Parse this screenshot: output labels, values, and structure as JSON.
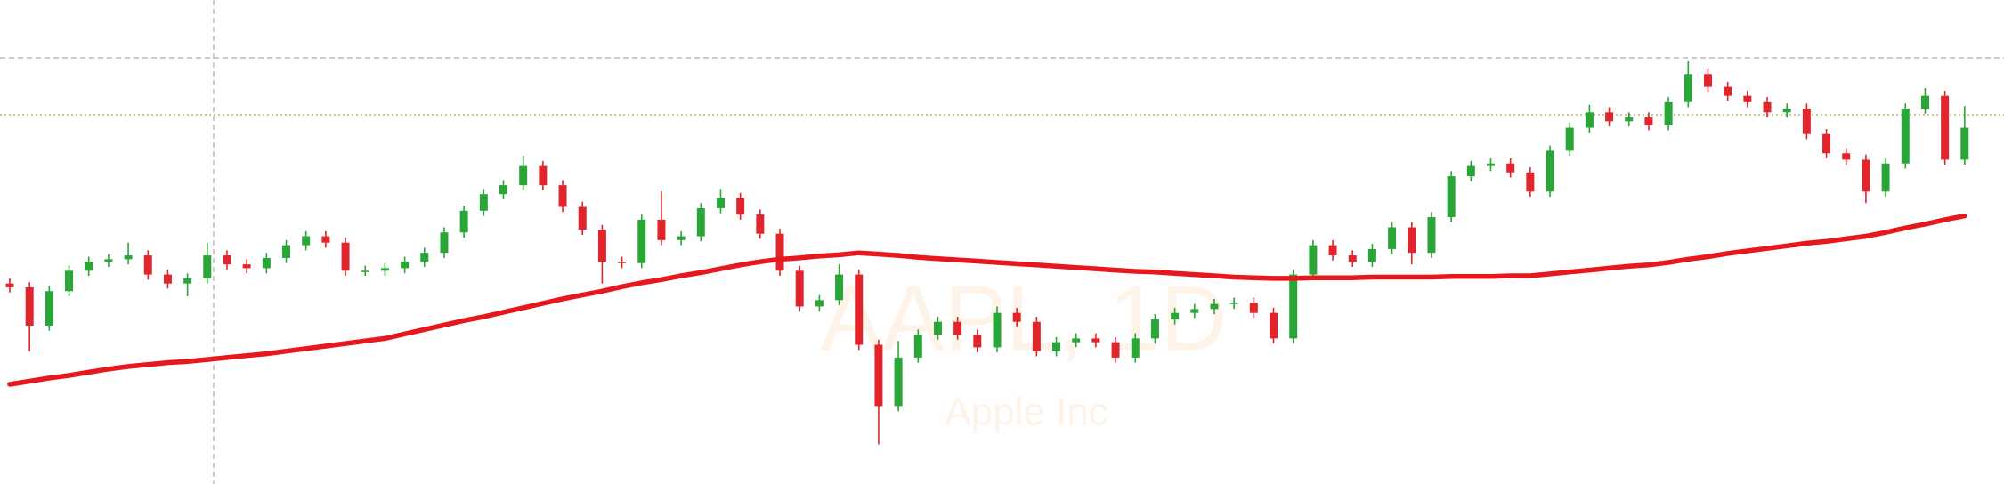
{
  "chart_data": {
    "type": "candlestick",
    "title": "AAPL, 1D",
    "subtitle": "Apple Inc",
    "up_color": "#2aa639",
    "down_color": "#e0262c",
    "ylim": [
      124.2,
      200
    ],
    "open": [
      155.6,
      155,
      149,
      154.4,
      157.6,
      159,
      159.4,
      160,
      157,
      155.6,
      156.4,
      160,
      158.6,
      158,
      159.6,
      161.6,
      163,
      162,
      157.6,
      157.6,
      158,
      159,
      160.4,
      163.6,
      167,
      169.6,
      171,
      174,
      171,
      167.6,
      164,
      159,
      158.8,
      165.6,
      162.4,
      163,
      167.4,
      169,
      166.4,
      163.4,
      157.6,
      152,
      153,
      157,
      146,
      136.4,
      144,
      147.6,
      149.6,
      147.6,
      145.6,
      151,
      149.6,
      145,
      146.4,
      147,
      146.4,
      144,
      147,
      150,
      151,
      151.6,
      152.4,
      152.6,
      151,
      147,
      157,
      161.6,
      160,
      159,
      161,
      164.4,
      160.4,
      166,
      172.4,
      174,
      174.4,
      173,
      170,
      176.4,
      180,
      182.4,
      181,
      181.6,
      180.4,
      184,
      188.4,
      186.4,
      185,
      184,
      182.4,
      183,
      179,
      176,
      175,
      170,
      174.4,
      183,
      185,
      175
    ],
    "high": [
      156.4,
      155.8,
      155.2,
      158.4,
      159.8,
      160.2,
      162,
      160.8,
      157.8,
      157.2,
      162,
      160.8,
      159.4,
      160.4,
      162.4,
      163.8,
      163.8,
      162.8,
      158.4,
      158.8,
      159.8,
      161.2,
      164.4,
      167.8,
      170.4,
      171.8,
      175.6,
      174.8,
      171.8,
      168.4,
      164.8,
      159.8,
      166.4,
      170,
      163.8,
      168.2,
      170.4,
      169.8,
      167.2,
      164.2,
      158.4,
      153.8,
      158.6,
      157.8,
      146.8,
      146.6,
      148.4,
      150.4,
      150.4,
      148.4,
      152,
      151.8,
      150.4,
      147.2,
      147.8,
      147.8,
      147.2,
      147.8,
      150.8,
      151.8,
      152.4,
      153.2,
      153.4,
      153.4,
      151.8,
      157.8,
      162.4,
      162.4,
      160.8,
      161.8,
      165.2,
      165.2,
      166.8,
      173.2,
      174.8,
      175.2,
      175.2,
      173.8,
      177.2,
      180.8,
      183.6,
      183.2,
      182.4,
      182.4,
      184.8,
      190.4,
      189.2,
      187.2,
      185.8,
      184.8,
      183.8,
      183.8,
      179.8,
      176.8,
      175.8,
      175.2,
      183.8,
      186.2,
      185.8,
      183.4
    ],
    "low": [
      154.2,
      145,
      148.2,
      153.6,
      156.8,
      158.2,
      158.6,
      156.2,
      154.8,
      153.6,
      155.6,
      157.8,
      157.2,
      157.2,
      158.8,
      160.8,
      161.2,
      156.8,
      156.8,
      156.8,
      157.2,
      158.2,
      159.6,
      162.8,
      166.2,
      168.8,
      170.2,
      170.2,
      166.8,
      163.2,
      155.6,
      158,
      158,
      161.6,
      161.6,
      162.2,
      166.6,
      165.6,
      162.6,
      156.8,
      151.2,
      151.2,
      152.2,
      145.2,
      130.4,
      135.6,
      143.2,
      146.8,
      146.8,
      144.8,
      144.8,
      148.8,
      144.2,
      144.2,
      145.6,
      145.6,
      143.2,
      143.2,
      146.2,
      149.2,
      150.2,
      150.8,
      151.6,
      150.2,
      146.2,
      146.2,
      156.2,
      159.2,
      158.2,
      158.2,
      160.2,
      158.6,
      159.6,
      165.2,
      171.6,
      173.2,
      172.2,
      169.2,
      169.2,
      175.6,
      179.2,
      180.2,
      180.2,
      179.6,
      179.6,
      183.2,
      185.6,
      184.2,
      183.2,
      181.6,
      181.6,
      178.2,
      175.2,
      174.2,
      168.2,
      169.2,
      173.6,
      182.2,
      174.2,
      174.2
    ],
    "close": [
      155,
      149,
      154.4,
      157.6,
      159,
      159.4,
      160,
      157,
      155.6,
      156.4,
      160,
      158.6,
      158,
      159.6,
      161.6,
      163,
      162,
      157.6,
      157.6,
      158,
      159,
      160.4,
      163.6,
      167,
      169.6,
      171,
      174,
      171,
      167.6,
      164,
      159,
      158.8,
      165.6,
      162.4,
      163,
      167.4,
      169,
      166.4,
      163.4,
      157.6,
      152,
      153,
      157,
      146,
      136.4,
      144,
      147.6,
      149.6,
      147.6,
      145.6,
      151,
      149.6,
      145,
      146.4,
      147,
      146.4,
      144,
      147,
      150,
      151,
      151.6,
      152.4,
      152.6,
      151,
      147,
      157,
      161.6,
      160,
      159,
      161,
      164.4,
      160.4,
      166,
      172.4,
      174,
      174.4,
      173,
      170,
      176.4,
      180,
      182.4,
      181,
      181.6,
      180.4,
      184,
      188.4,
      186.4,
      185,
      184,
      182.4,
      183,
      179,
      176,
      175,
      170,
      174.4,
      183,
      185,
      175,
      180
    ],
    "ma": {
      "color": "#e8171b",
      "values": [
        139.8,
        140.3,
        140.8,
        141.2,
        141.7,
        142.2,
        142.6,
        142.9,
        143.2,
        143.4,
        143.7,
        144.0,
        144.3,
        144.6,
        145.0,
        145.4,
        145.8,
        146.2,
        146.6,
        147.0,
        147.7,
        148.4,
        149.1,
        149.8,
        150.4,
        151.1,
        151.8,
        152.5,
        153.2,
        153.8,
        154.4,
        155.1,
        155.7,
        156.2,
        156.8,
        157.3,
        157.9,
        158.5,
        159.0,
        159.4,
        159.6,
        159.9,
        160.1,
        160.4,
        160.2,
        160.0,
        159.7,
        159.5,
        159.3,
        159.1,
        158.9,
        158.7,
        158.5,
        158.3,
        158.1,
        157.9,
        157.7,
        157.5,
        157.4,
        157.2,
        157.0,
        156.8,
        156.6,
        156.5,
        156.4,
        156.4,
        156.5,
        156.5,
        156.5,
        156.6,
        156.6,
        156.6,
        156.6,
        156.7,
        156.7,
        156.7,
        156.8,
        156.8,
        157.1,
        157.4,
        157.7,
        158.0,
        158.3,
        158.5,
        158.9,
        159.4,
        159.8,
        160.3,
        160.7,
        161.1,
        161.5,
        161.9,
        162.2,
        162.6,
        163.0,
        163.6,
        164.3,
        164.9,
        165.6,
        166.2
      ]
    }
  }
}
